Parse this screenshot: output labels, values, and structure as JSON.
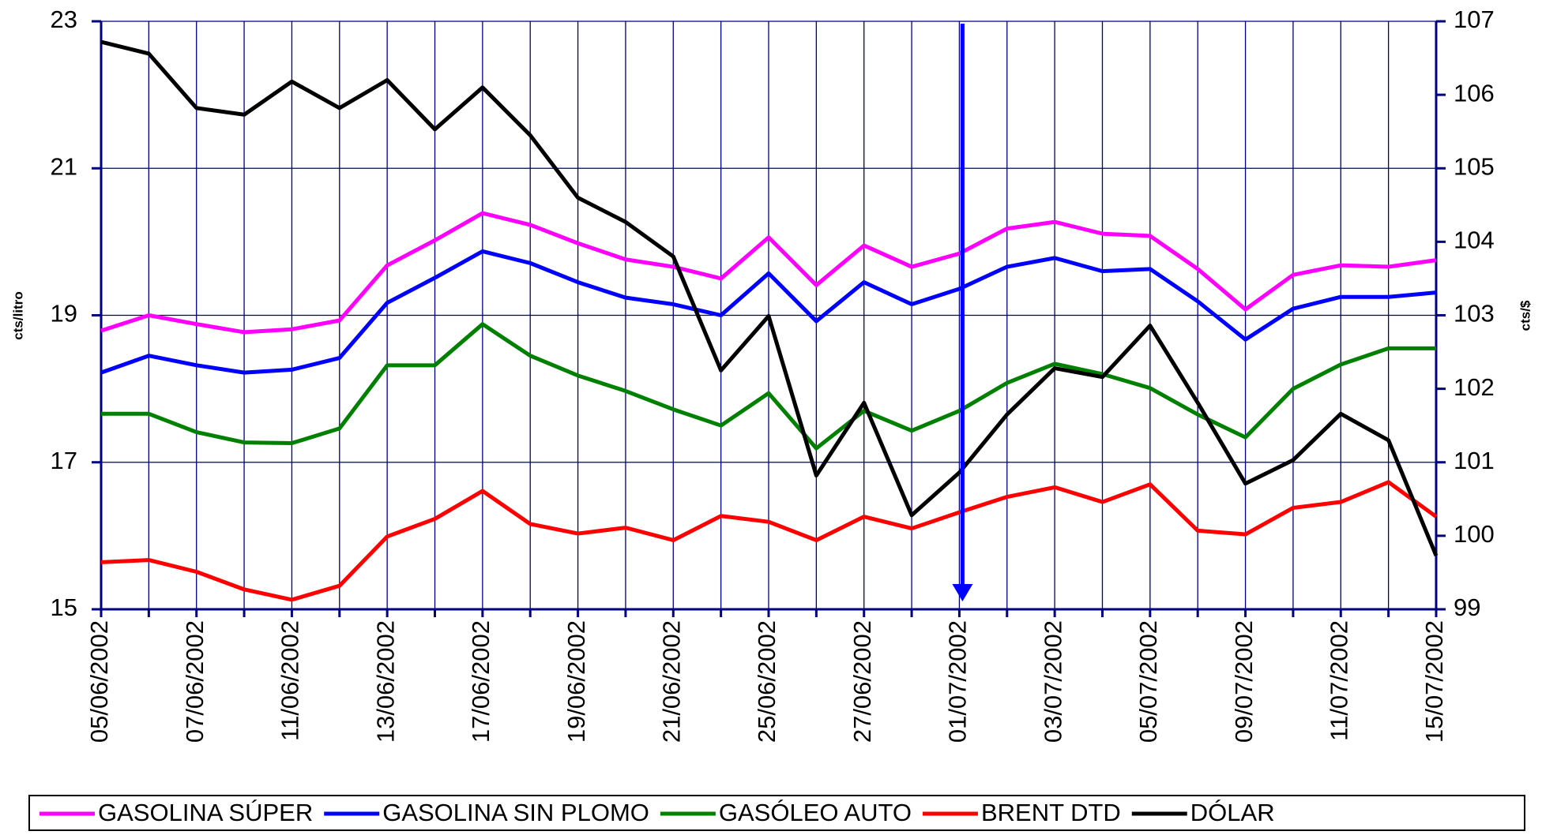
{
  "chart_data": {
    "type": "line",
    "categories": [
      "05/06/2002",
      null,
      "07/06/2002",
      null,
      "11/06/2002",
      null,
      "13/06/2002",
      null,
      "17/06/2002",
      null,
      "19/06/2002",
      null,
      "21/06/2002",
      null,
      "25/06/2002",
      null,
      "27/06/2002",
      null,
      "01/07/2002",
      null,
      "03/07/2002",
      null,
      "05/07/2002",
      null,
      "09/07/2002",
      null,
      "11/07/2002",
      null,
      "15/07/2002"
    ],
    "ylabel": "cts/litro",
    "y2label": "cts/$",
    "ylim": [
      15,
      23
    ],
    "yticks": [
      15,
      17,
      19,
      21,
      23
    ],
    "y2lim": [
      99,
      107
    ],
    "y2ticks": [
      99,
      100,
      101,
      102,
      103,
      104,
      105,
      106,
      107
    ],
    "grid": true,
    "legend": "bottom",
    "series": [
      {
        "name": "GASOLINA SÚPER",
        "color": "#ff00ff",
        "values": [
          18.79,
          19.0,
          18.88,
          18.77,
          18.81,
          18.93,
          19.68,
          20.02,
          20.39,
          20.23,
          19.98,
          19.76,
          19.66,
          19.5,
          20.06,
          19.41,
          19.95,
          19.66,
          19.84,
          20.18,
          20.27,
          20.11,
          20.08,
          19.63,
          19.08,
          19.55,
          19.68,
          19.66,
          19.75
        ]
      },
      {
        "name": "GASOLINA SIN PLOMO",
        "color": "#0000ff",
        "values": [
          18.22,
          18.45,
          18.32,
          18.22,
          18.26,
          18.42,
          19.17,
          19.51,
          19.87,
          19.71,
          19.45,
          19.24,
          19.15,
          19.0,
          19.57,
          18.92,
          19.45,
          19.15,
          19.36,
          19.66,
          19.78,
          19.6,
          19.63,
          19.19,
          18.67,
          19.09,
          19.25,
          19.25,
          19.31
        ]
      },
      {
        "name": "GASÓLEO AUTO",
        "color": "#008000",
        "values": [
          17.66,
          17.66,
          17.41,
          17.27,
          17.26,
          17.46,
          18.32,
          18.32,
          18.88,
          18.45,
          18.18,
          17.97,
          17.72,
          17.5,
          17.94,
          17.19,
          17.7,
          17.43,
          17.7,
          18.08,
          18.34,
          18.2,
          18.01,
          17.65,
          17.34,
          18.0,
          18.33,
          18.55,
          18.55
        ]
      },
      {
        "name": "BRENT DTD",
        "color": "#ff0000",
        "values": [
          15.64,
          15.67,
          15.51,
          15.27,
          15.13,
          15.32,
          15.99,
          16.23,
          16.61,
          16.16,
          16.03,
          16.11,
          15.94,
          16.27,
          16.19,
          15.94,
          16.26,
          16.1,
          16.32,
          16.53,
          16.66,
          16.46,
          16.7,
          16.07,
          16.02,
          16.38,
          16.46,
          16.73,
          16.26
        ]
      },
      {
        "name": "DÓLAR",
        "color": "#000000",
        "axis": "y2",
        "values": [
          106.72,
          106.56,
          105.82,
          105.73,
          106.18,
          105.82,
          106.2,
          105.53,
          106.1,
          105.45,
          104.6,
          104.27,
          103.8,
          102.25,
          102.99,
          100.82,
          101.81,
          100.28,
          100.86,
          101.65,
          102.28,
          102.16,
          102.86,
          101.81,
          100.71,
          101.03,
          101.66,
          101.3,
          99.73
        ]
      }
    ]
  }
}
